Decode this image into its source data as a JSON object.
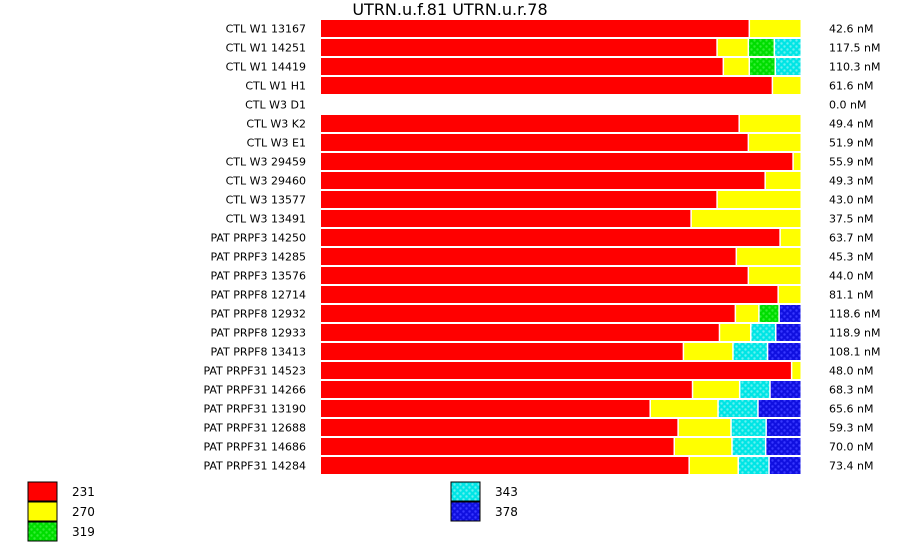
{
  "chart_data": {
    "type": "bar",
    "orientation": "horizontal",
    "stacked": true,
    "normalized": true,
    "title": "UTRN.u.f.81  UTRN.u.r.78",
    "value_unit": "percent of row total",
    "legend_placement": "bottom",
    "grid": false,
    "series": [
      {
        "name": "231",
        "color": "#ff0000",
        "patterned": false
      },
      {
        "name": "270",
        "color": "#ffff00",
        "patterned": false
      },
      {
        "name": "319",
        "color": "#00dd00",
        "patterned": true
      },
      {
        "name": "343",
        "color": "#00e5e5",
        "patterned": true
      },
      {
        "name": "378",
        "color": "#1010e0",
        "patterned": true
      }
    ],
    "rows": [
      {
        "label": "CTL W1 13167",
        "total": "42.6 nM",
        "values": [
          89.2,
          10.8,
          0,
          0,
          0
        ]
      },
      {
        "label": "CTL W1 14251",
        "total": "117.5 nM",
        "values": [
          82.5,
          6.5,
          5.4,
          5.6,
          0
        ]
      },
      {
        "label": "CTL W1 14419",
        "total": "110.3 nM",
        "values": [
          83.8,
          5.4,
          5.4,
          5.4,
          0
        ]
      },
      {
        "label": "CTL W1 H1",
        "total": "61.6 nM",
        "values": [
          94.0,
          6.0,
          0,
          0,
          0
        ]
      },
      {
        "label": "CTL W3 D1",
        "total": "0.0 nM",
        "values": [
          0,
          0,
          0,
          0,
          0
        ]
      },
      {
        "label": "CTL W3 K2",
        "total": "49.4 nM",
        "values": [
          87.1,
          12.9,
          0,
          0,
          0
        ]
      },
      {
        "label": "CTL W3 E1",
        "total": "51.9 nM",
        "values": [
          89.0,
          11.0,
          0,
          0,
          0
        ]
      },
      {
        "label": "CTL W3 29459",
        "total": "55.9 nM",
        "values": [
          98.3,
          1.7,
          0,
          0,
          0
        ]
      },
      {
        "label": "CTL W3 29460",
        "total": "49.3 nM",
        "values": [
          92.5,
          7.5,
          0,
          0,
          0
        ]
      },
      {
        "label": "CTL W3 13577",
        "total": "43.0 nM",
        "values": [
          82.5,
          17.5,
          0,
          0,
          0
        ]
      },
      {
        "label": "CTL W3 13491",
        "total": "37.5 nM",
        "values": [
          77.1,
          22.9,
          0,
          0,
          0
        ]
      },
      {
        "label": "PAT PRPF3 14250",
        "total": "63.7 nM",
        "values": [
          95.6,
          4.4,
          0,
          0,
          0
        ]
      },
      {
        "label": "PAT PRPF3 14285",
        "total": "45.3 nM",
        "values": [
          86.5,
          13.5,
          0,
          0,
          0
        ]
      },
      {
        "label": "PAT PRPF3 13576",
        "total": "44.0 nM",
        "values": [
          89.0,
          11.0,
          0,
          0,
          0
        ]
      },
      {
        "label": "PAT PRPF8 12714",
        "total": "81.1 nM",
        "values": [
          95.2,
          4.8,
          0,
          0,
          0
        ]
      },
      {
        "label": "PAT PRPF8 12932",
        "total": "118.6 nM",
        "values": [
          86.3,
          4.9,
          4.2,
          0,
          4.6
        ]
      },
      {
        "label": "PAT PRPF8 12933",
        "total": "118.9 nM",
        "values": [
          83.0,
          6.5,
          0,
          5.2,
          5.3
        ]
      },
      {
        "label": "PAT PRPF8 13413",
        "total": "108.1 nM",
        "values": [
          75.5,
          10.3,
          0,
          7.2,
          7.0
        ]
      },
      {
        "label": "PAT PRPF31 14523",
        "total": "48.0 nM",
        "values": [
          98.0,
          2.0,
          0,
          0,
          0
        ]
      },
      {
        "label": "PAT PRPF31 14266",
        "total": "68.3 nM",
        "values": [
          77.4,
          9.8,
          0,
          6.3,
          6.5
        ]
      },
      {
        "label": "PAT PRPF31 13190",
        "total": "65.6 nM",
        "values": [
          68.6,
          14.1,
          0,
          8.3,
          9.0
        ]
      },
      {
        "label": "PAT PRPF31 12688",
        "total": "59.3 nM",
        "values": [
          74.4,
          11.0,
          0,
          7.3,
          7.3
        ]
      },
      {
        "label": "PAT PRPF31 14686",
        "total": "70.0 nM",
        "values": [
          73.6,
          12.0,
          0,
          7.0,
          7.4
        ]
      },
      {
        "label": "PAT PRPF31 14284",
        "total": "73.4 nM",
        "values": [
          76.7,
          10.2,
          0,
          6.4,
          6.7
        ]
      }
    ]
  }
}
